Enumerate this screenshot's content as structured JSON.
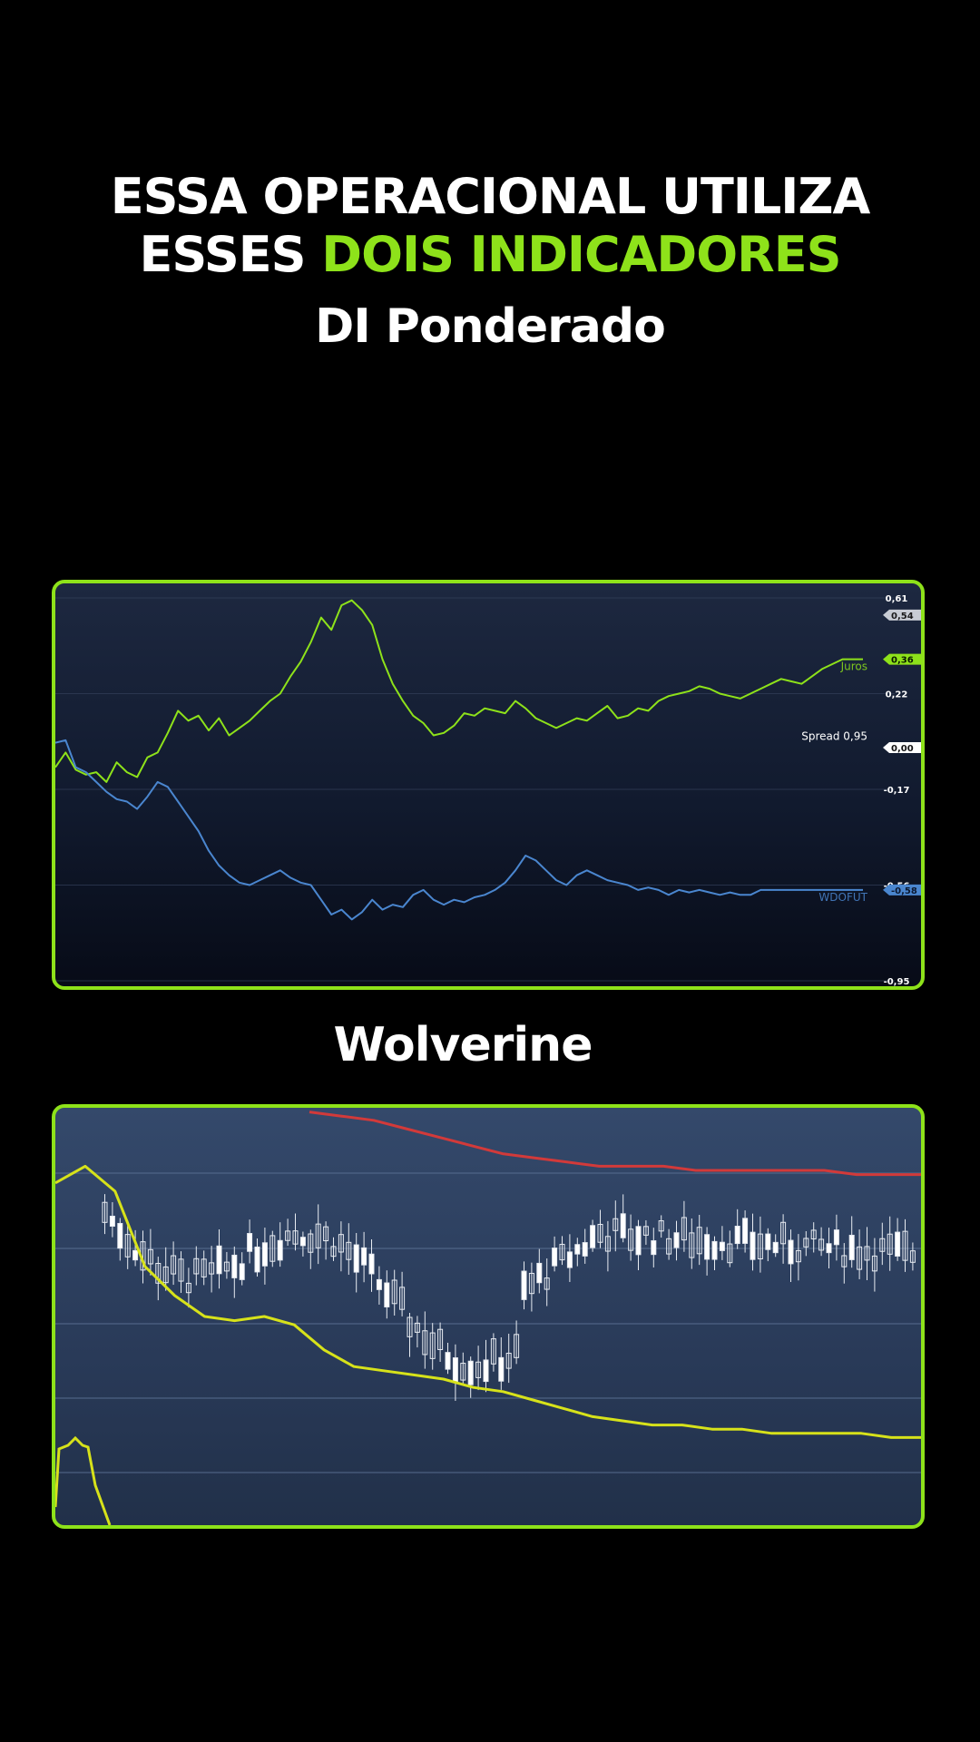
{
  "headline": {
    "line1": "ESSA OPERACIONAL UTILIZA",
    "line2_prefix": "ESSES ",
    "line2_accent": "DOIS INDICADORES",
    "accent_color": "#8ee21a"
  },
  "indicator1_title": "DI Ponderado",
  "indicator2_title": "Wolverine",
  "chart_data": [
    {
      "type": "line",
      "title": "",
      "ylim": [
        -0.95,
        0.61
      ],
      "y_ticks": [
        "0,61",
        "0,22",
        "-0,17",
        "-0,56",
        "-0,95"
      ],
      "grid": true,
      "series": [
        {
          "name": "Juros",
          "color": "#8ee21a",
          "last_value_label": "0,36",
          "values": [
            -0.08,
            -0.02,
            -0.09,
            -0.11,
            -0.1,
            -0.14,
            -0.06,
            -0.1,
            -0.12,
            -0.04,
            -0.02,
            0.06,
            0.15,
            0.11,
            0.13,
            0.07,
            0.12,
            0.05,
            0.08,
            0.11,
            0.15,
            0.19,
            0.22,
            0.29,
            0.35,
            0.43,
            0.53,
            0.48,
            0.58,
            0.6,
            0.56,
            0.5,
            0.36,
            0.26,
            0.19,
            0.13,
            0.1,
            0.05,
            0.06,
            0.09,
            0.14,
            0.13,
            0.16,
            0.15,
            0.14,
            0.19,
            0.16,
            0.12,
            0.1,
            0.08,
            0.1,
            0.12,
            0.11,
            0.14,
            0.17,
            0.12,
            0.13,
            0.16,
            0.15,
            0.19,
            0.21,
            0.22,
            0.23,
            0.25,
            0.24,
            0.22,
            0.21,
            0.2,
            0.22,
            0.24,
            0.26,
            0.28,
            0.27,
            0.26,
            0.29,
            0.32,
            0.34,
            0.36,
            0.36,
            0.36
          ]
        },
        {
          "name": "WDOFUT",
          "color": "#4a86cf",
          "last_value_label": "-0,58",
          "values": [
            0.02,
            0.03,
            -0.08,
            -0.1,
            -0.14,
            -0.18,
            -0.21,
            -0.22,
            -0.25,
            -0.2,
            -0.14,
            -0.16,
            -0.22,
            -0.28,
            -0.34,
            -0.42,
            -0.48,
            -0.52,
            -0.55,
            -0.56,
            -0.54,
            -0.52,
            -0.5,
            -0.53,
            -0.55,
            -0.56,
            -0.62,
            -0.68,
            -0.66,
            -0.7,
            -0.67,
            -0.62,
            -0.66,
            -0.64,
            -0.65,
            -0.6,
            -0.58,
            -0.62,
            -0.64,
            -0.62,
            -0.63,
            -0.61,
            -0.6,
            -0.58,
            -0.55,
            -0.5,
            -0.44,
            -0.46,
            -0.5,
            -0.54,
            -0.56,
            -0.52,
            -0.5,
            -0.52,
            -0.54,
            -0.55,
            -0.56,
            -0.58,
            -0.57,
            -0.58,
            -0.6,
            -0.58,
            -0.59,
            -0.58,
            -0.59,
            -0.6,
            -0.59,
            -0.6,
            -0.6,
            -0.58,
            -0.58,
            -0.58,
            -0.58,
            -0.58,
            -0.58,
            -0.58,
            -0.58,
            -0.58,
            -0.58,
            -0.58
          ]
        }
      ],
      "price_tags": [
        {
          "label": "0,54",
          "value": 0.54,
          "bg": "#c8ccd4",
          "fg": "#1a1a1a"
        },
        {
          "label": "0,36",
          "value": 0.36,
          "bg": "#8ee21a",
          "fg": "#0a1a00"
        },
        {
          "label": "0,00",
          "value": 0.0,
          "bg": "#ffffff",
          "fg": "#111111"
        },
        {
          "label": "-0,58",
          "value": -0.58,
          "bg": "#4a86cf",
          "fg": "#0b1830"
        }
      ],
      "annotations": [
        {
          "text": "Spread 0,95",
          "value": 0.01
        }
      ]
    },
    {
      "type": "candlestick",
      "title": "",
      "grid": true,
      "ylim": [
        0,
        100
      ],
      "bands": [
        {
          "name": "",
          "color": "#d23a3a",
          "values": [
            99,
            98,
            97,
            95,
            93,
            91,
            89,
            88,
            87,
            86,
            86,
            86,
            85,
            85,
            85,
            85,
            85,
            84,
            84,
            84
          ]
        },
        {
          "name": "",
          "color": "#d7e21a",
          "values": [
            82,
            86,
            80,
            62,
            55,
            50,
            49,
            50,
            48,
            42,
            38,
            37,
            36,
            35,
            33,
            32,
            30,
            28,
            26,
            25,
            24,
            24,
            23,
            23,
            22,
            22,
            22,
            22,
            21,
            21
          ]
        }
      ]
    }
  ]
}
